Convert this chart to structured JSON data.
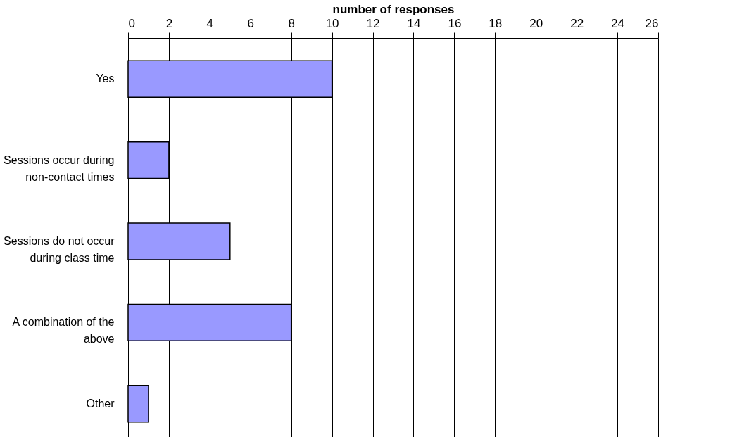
{
  "chart_data": {
    "type": "bar",
    "orientation": "horizontal",
    "xlabel": "number of responses",
    "categories": [
      "Yes",
      "Sessions occur during non-contact times",
      "Sessions do not occur during class time",
      "A combination of the above",
      "Other"
    ],
    "values": [
      10,
      2,
      5,
      8,
      1
    ],
    "color": "#9999ff",
    "xlim": [
      0,
      26
    ],
    "xticks": [
      0,
      2,
      4,
      6,
      8,
      10,
      12,
      14,
      16,
      18,
      20,
      22,
      24,
      26
    ],
    "grid": "x"
  }
}
